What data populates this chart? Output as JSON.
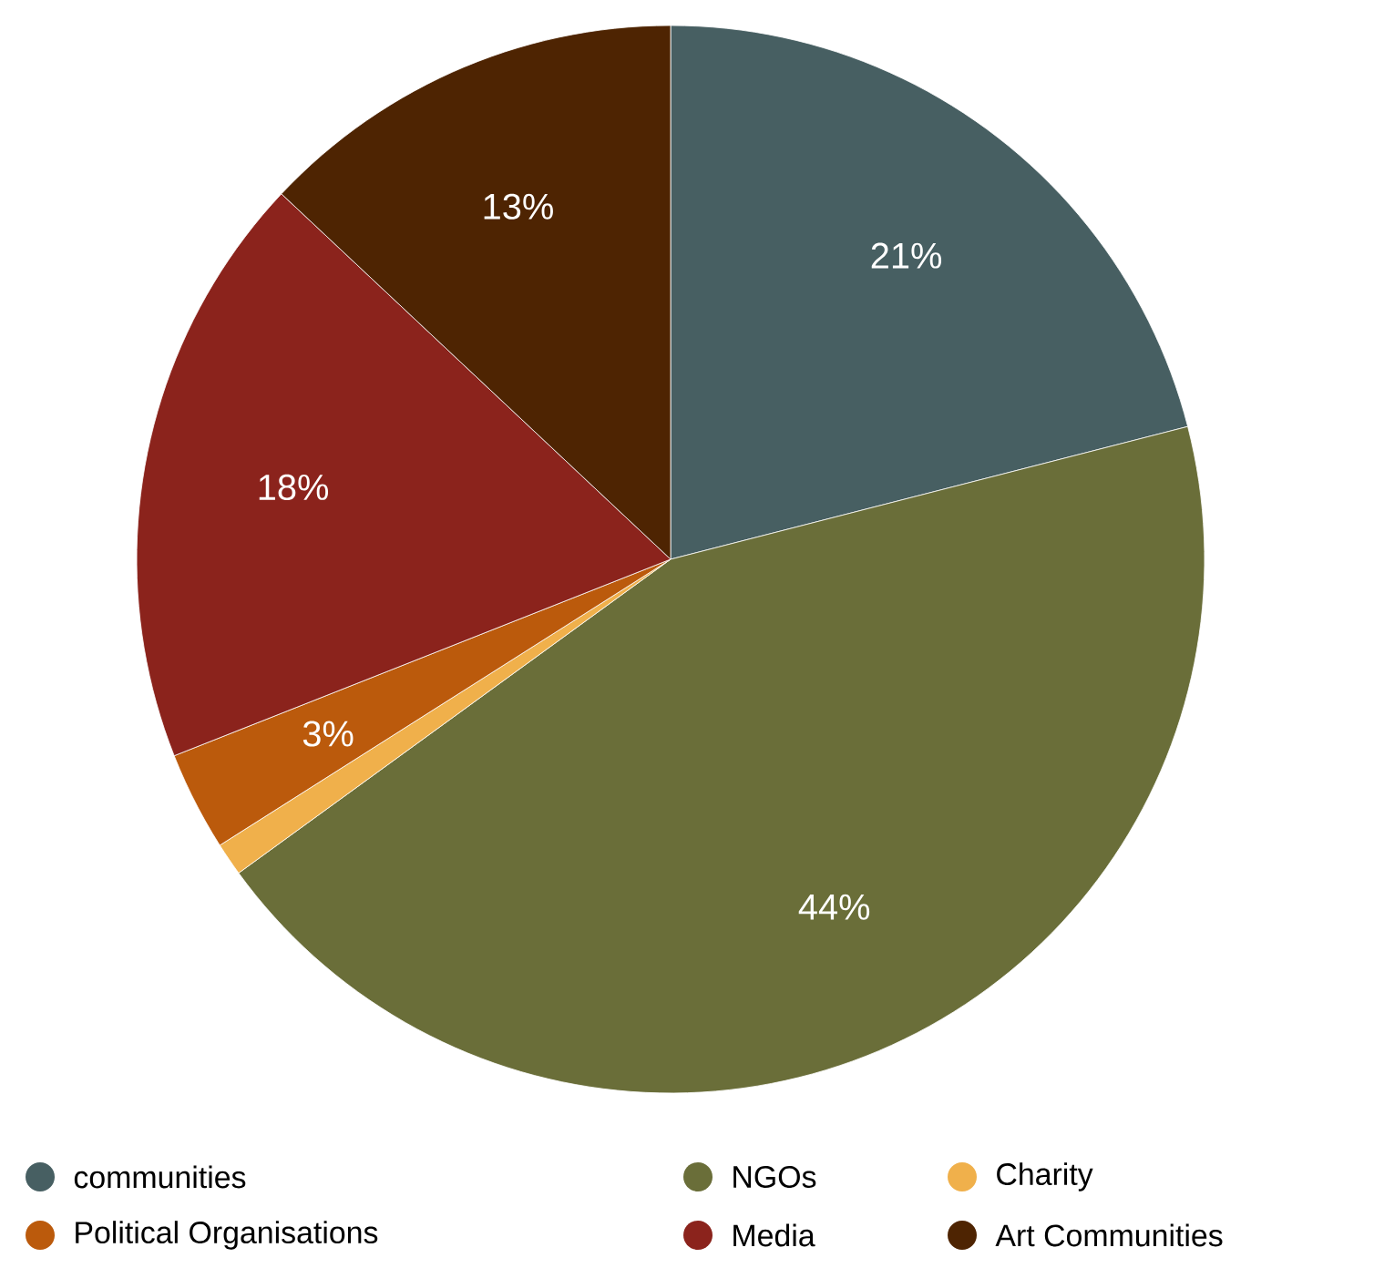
{
  "chart_data": {
    "type": "pie",
    "categories": [
      "communities",
      "NGOs",
      "Charity",
      "Political Organisations",
      "Media",
      "Art Communities"
    ],
    "values": [
      21,
      44,
      1,
      3,
      18,
      13
    ],
    "colors": [
      "#475f62",
      "#6a6e39",
      "#f0b04b",
      "#bb5a0c",
      "#8b231c",
      "#4e2402"
    ],
    "value_labels": [
      "21%",
      "44%",
      null,
      "3%",
      "18%",
      "13%"
    ],
    "legend": "bottom"
  }
}
